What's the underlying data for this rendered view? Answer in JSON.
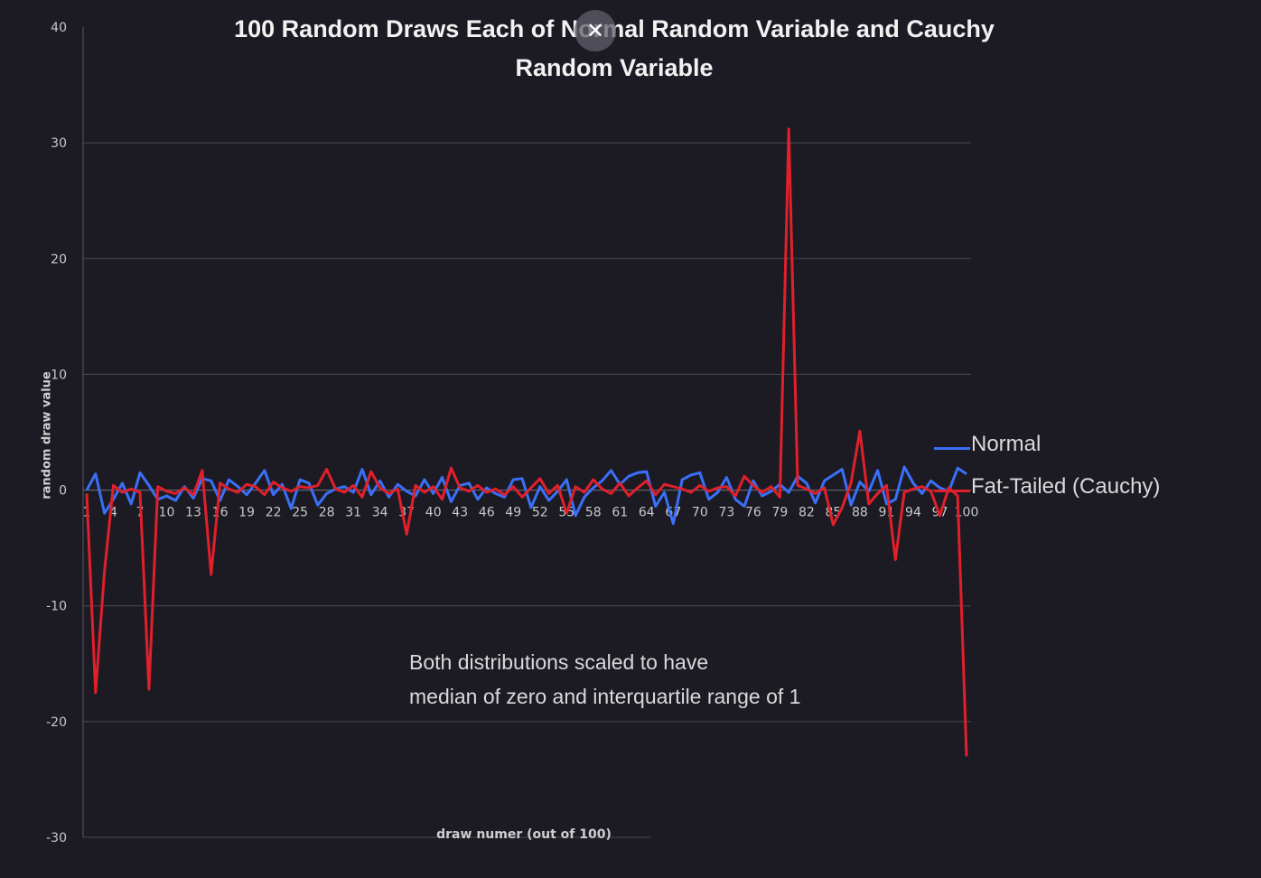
{
  "chart_data": {
    "type": "line",
    "title": "100 Random Draws Each of Normal Random Variable and Cauchy Random Variable",
    "title_lines": [
      "100 Random Draws Each of Normal Random Variable and Cauchy",
      "Random Variable"
    ],
    "xlabel": "draw numer (out of 100)",
    "ylabel": "random draw value",
    "ylim": [
      -30,
      40
    ],
    "yticks": [
      40,
      30,
      20,
      10,
      0,
      -10,
      -20,
      -30
    ],
    "xtick_labels": [
      "1",
      "4",
      "7",
      "10",
      "13",
      "16",
      "19",
      "22",
      "25",
      "28",
      "31",
      "34",
      "37",
      "40",
      "43",
      "46",
      "49",
      "52",
      "55",
      "58",
      "61",
      "64",
      "67",
      "70",
      "73",
      "76",
      "79",
      "82",
      "85",
      "88",
      "91",
      "94",
      "97",
      "100"
    ],
    "grid": true,
    "legend_position": "right",
    "annotation": [
      "Both distributions scaled to have",
      "median of zero and interquartile  range of 1"
    ],
    "colors": {
      "normal": "#3a6ff7",
      "cauchy": "#e0202a",
      "grid": "#4a4a52",
      "background": "#1c1b24"
    },
    "series": [
      {
        "name": "Normal",
        "color": "#3a6ff7",
        "values": [
          0,
          1.4,
          -2,
          -0.8,
          0.6,
          -1.2,
          1.5,
          0.4,
          -0.8,
          -0.5,
          -0.9,
          0.3,
          -0.7,
          1,
          0.8,
          -0.9,
          0.9,
          0.3,
          -0.4,
          0.6,
          1.7,
          -0.4,
          0.5,
          -1.6,
          0.9,
          0.6,
          -1.3,
          -0.3,
          0.1,
          0.3,
          -0.2,
          1.8,
          -0.4,
          0.8,
          -0.6,
          0.5,
          -0.1,
          -0.5,
          0.9,
          -0.3,
          1.1,
          -1,
          0.4,
          0.6,
          -0.8,
          0.2,
          -0.3,
          -0.6,
          0.9,
          1,
          -1.5,
          0.3,
          -0.9,
          -0.1,
          0.9,
          -2.2,
          -0.6,
          0.2,
          0.8,
          1.7,
          0.5,
          1.2,
          1.5,
          1.6,
          -1.4,
          -0.2,
          -2.9,
          0.9,
          1.3,
          1.5,
          -0.8,
          -0.2,
          1.1,
          -0.8,
          -1.4,
          0.8,
          -0.5,
          -0.1,
          0.5,
          -0.2,
          1.2,
          0.6,
          -1.1,
          0.8,
          1.3,
          1.8,
          -1.3,
          0.7,
          -0.1,
          1.7,
          -1.2,
          -0.8,
          2,
          0.6,
          -0.3,
          0.8,
          0.2,
          -0.1,
          1.9,
          1.4
        ]
      },
      {
        "name": "Fat-Tailed (Cauchy)",
        "color": "#e0202a",
        "values": [
          -0.3,
          -17.5,
          -7,
          0.4,
          -0.2,
          0.1,
          -0.2,
          -17.2,
          0.3,
          -0.1,
          -0.3,
          0.2,
          -0.4,
          1.7,
          -7.3,
          0.6,
          0.1,
          -0.2,
          0.5,
          0.3,
          -0.4,
          0.7,
          0.2,
          -0.1,
          0.3,
          0.2,
          0.4,
          1.8,
          0.1,
          -0.2,
          0.4,
          -0.6,
          1.6,
          0.2,
          -0.3,
          0.1,
          -3.8,
          0.4,
          -0.2,
          0.3,
          -0.8,
          1.9,
          0.2,
          -0.1,
          0.4,
          -0.2,
          0.1,
          -0.4,
          0.3,
          -0.6,
          0.2,
          1,
          -0.3,
          0.4,
          -2,
          0.3,
          -0.2,
          0.9,
          0.1,
          -0.3,
          0.6,
          -0.5,
          0.2,
          0.8,
          -0.4,
          0.5,
          0.3,
          0.1,
          -0.2,
          0.4,
          -0.1,
          0.2,
          0.3,
          -0.5,
          1.2,
          0.4,
          -0.2,
          0.3,
          -0.6,
          31.2,
          0.4,
          0.1,
          -0.3,
          0.2,
          -3,
          -1.5,
          0.6,
          5.1,
          -1.2,
          -0.3,
          0.4,
          -6,
          -0.2,
          0.1,
          0.3,
          -0.1,
          -2.2,
          0.2,
          -0.5,
          -23
        ]
      }
    ]
  }
}
